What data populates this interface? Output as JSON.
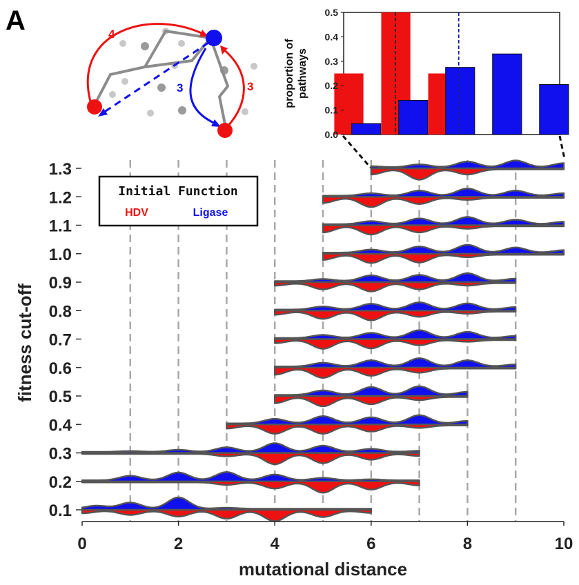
{
  "panel_label": "A",
  "colors": {
    "hdv": "#ee1111",
    "ligase": "#1010ee",
    "outline": "#555555",
    "gridline": "#a8a8a8",
    "node_gray": "#9a9a9a",
    "node_light": "#c8c8c8"
  },
  "diagram": {
    "red_top_label": "4",
    "red_right_label": "3",
    "blue_label": "3"
  },
  "legend": {
    "title": "Initial Function",
    "hdv_label": "HDV",
    "ligase_label": "Ligase"
  },
  "chart_data": [
    {
      "type": "bar",
      "title": "",
      "xlabel": "",
      "ylabel": "proportion of pathways",
      "ylabel_lines": [
        "proportion of",
        "pathways"
      ],
      "x_range": [
        5.65,
        10.25
      ],
      "ylim": [
        0,
        0.5
      ],
      "yticks": [
        "0.0",
        "0.1",
        "0.2",
        "0.3",
        "0.4",
        "0.5"
      ],
      "x_tick_labels_shown": false,
      "series": [
        {
          "name": "HDV",
          "x": [
            6,
            7,
            8
          ],
          "values": [
            0.25,
            0.5,
            0.25
          ]
        },
        {
          "name": "Ligase",
          "x": [
            6,
            7,
            8,
            9,
            10
          ],
          "values": [
            0.045,
            0.14,
            0.275,
            0.33,
            0.205
          ]
        }
      ],
      "reference_lines": [
        {
          "series": "HDV",
          "x": 6.75,
          "style": "dashed"
        },
        {
          "series": "Ligase",
          "x": 8.1,
          "style": "dashed"
        }
      ],
      "zoom_of_row": "1.3"
    },
    {
      "type": "violin",
      "title": "",
      "xlabel": "mutational distance",
      "ylabel": "fitness cut-off",
      "xlim": [
        0,
        10
      ],
      "xticks": [
        "0",
        "2",
        "4",
        "6",
        "8",
        "10"
      ],
      "grid": "dashed vertical at every integer",
      "legend_placement": "top-left",
      "series_names": [
        "HDV",
        "Ligase"
      ],
      "rows": [
        {
          "cutoff": "1.3",
          "range": [
            6,
            10
          ],
          "ligase_peaks": [
            [
              6,
              0.05
            ],
            [
              7,
              0.14
            ],
            [
              8,
              0.28
            ],
            [
              9,
              0.33
            ],
            [
              10,
              0.2
            ]
          ],
          "hdv_peaks": [
            [
              6,
              0.25
            ],
            [
              7,
              0.5
            ],
            [
              8,
              0.25
            ]
          ]
        },
        {
          "cutoff": "1.2",
          "range": [
            5,
            10
          ],
          "ligase_peaks": [
            [
              6,
              0.12
            ],
            [
              7,
              0.25
            ],
            [
              8,
              0.35
            ],
            [
              9,
              0.25
            ],
            [
              10,
              0.12
            ]
          ],
          "hdv_peaks": [
            [
              5,
              0.25
            ],
            [
              6,
              0.45
            ],
            [
              7,
              0.3
            ],
            [
              8,
              0.1
            ]
          ]
        },
        {
          "cutoff": "1.1",
          "range": [
            5,
            10
          ],
          "ligase_peaks": [
            [
              6,
              0.15
            ],
            [
              7,
              0.28
            ],
            [
              8,
              0.35
            ],
            [
              9,
              0.22
            ],
            [
              10,
              0.12
            ]
          ],
          "hdv_peaks": [
            [
              5,
              0.3
            ],
            [
              6,
              0.4
            ],
            [
              7,
              0.3
            ],
            [
              8,
              0.12
            ]
          ]
        },
        {
          "cutoff": "1.0",
          "range": [
            5,
            10
          ],
          "ligase_peaks": [
            [
              6,
              0.15
            ],
            [
              7,
              0.3
            ],
            [
              8,
              0.38
            ],
            [
              9,
              0.25
            ],
            [
              10,
              0.12
            ]
          ],
          "hdv_peaks": [
            [
              5,
              0.25
            ],
            [
              6,
              0.4
            ],
            [
              7,
              0.38
            ],
            [
              8,
              0.12
            ]
          ]
        },
        {
          "cutoff": "0.9",
          "range": [
            4,
            9
          ],
          "ligase_peaks": [
            [
              5,
              0.1
            ],
            [
              6,
              0.28
            ],
            [
              7,
              0.3
            ],
            [
              8,
              0.38
            ],
            [
              9,
              0.12
            ]
          ],
          "hdv_peaks": [
            [
              4,
              0.12
            ],
            [
              5,
              0.3
            ],
            [
              6,
              0.4
            ],
            [
              7,
              0.3
            ],
            [
              8,
              0.12
            ]
          ]
        },
        {
          "cutoff": "0.8",
          "range": [
            4,
            9
          ],
          "ligase_peaks": [
            [
              5,
              0.15
            ],
            [
              6,
              0.28
            ],
            [
              7,
              0.35
            ],
            [
              8,
              0.3
            ],
            [
              9,
              0.12
            ]
          ],
          "hdv_peaks": [
            [
              4,
              0.15
            ],
            [
              5,
              0.35
            ],
            [
              6,
              0.42
            ],
            [
              7,
              0.25
            ],
            [
              8,
              0.1
            ]
          ]
        },
        {
          "cutoff": "0.7",
          "range": [
            4,
            9
          ],
          "ligase_peaks": [
            [
              5,
              0.15
            ],
            [
              6,
              0.25
            ],
            [
              7,
              0.38
            ],
            [
              8,
              0.3
            ],
            [
              9,
              0.1
            ]
          ],
          "hdv_peaks": [
            [
              4,
              0.15
            ],
            [
              5,
              0.42
            ],
            [
              6,
              0.4
            ],
            [
              7,
              0.25
            ],
            [
              8,
              0.08
            ]
          ]
        },
        {
          "cutoff": "0.6",
          "range": [
            4,
            9
          ],
          "ligase_peaks": [
            [
              5,
              0.18
            ],
            [
              6,
              0.3
            ],
            [
              7,
              0.4
            ],
            [
              8,
              0.3
            ],
            [
              9,
              0.1
            ]
          ],
          "hdv_peaks": [
            [
              4,
              0.3
            ],
            [
              5,
              0.45
            ],
            [
              6,
              0.35
            ],
            [
              7,
              0.2
            ]
          ]
        },
        {
          "cutoff": "0.5",
          "range": [
            4,
            8
          ],
          "ligase_peaks": [
            [
              5,
              0.22
            ],
            [
              6,
              0.38
            ],
            [
              7,
              0.42
            ],
            [
              8,
              0.15
            ]
          ],
          "hdv_peaks": [
            [
              4,
              0.3
            ],
            [
              5,
              0.45
            ],
            [
              6,
              0.35
            ],
            [
              7,
              0.15
            ]
          ]
        },
        {
          "cutoff": "0.4",
          "range": [
            3,
            8
          ],
          "ligase_peaks": [
            [
              4,
              0.22
            ],
            [
              5,
              0.35
            ],
            [
              6,
              0.3
            ],
            [
              7,
              0.4
            ],
            [
              8,
              0.12
            ]
          ],
          "hdv_peaks": [
            [
              3,
              0.15
            ],
            [
              4,
              0.4
            ],
            [
              5,
              0.4
            ],
            [
              6,
              0.3
            ],
            [
              7,
              0.12
            ]
          ]
        },
        {
          "cutoff": "0.3",
          "range": [
            0,
            7
          ],
          "ligase_peaks": [
            [
              1,
              0.04
            ],
            [
              2,
              0.1
            ],
            [
              3,
              0.22
            ],
            [
              4,
              0.42
            ],
            [
              5,
              0.3
            ],
            [
              6,
              0.15
            ],
            [
              7,
              0.05
            ]
          ],
          "hdv_peaks": [
            [
              3,
              0.12
            ],
            [
              4,
              0.5
            ],
            [
              5,
              0.45
            ],
            [
              6,
              0.28
            ],
            [
              7,
              0.1
            ]
          ]
        },
        {
          "cutoff": "0.2",
          "range": [
            0,
            7
          ],
          "ligase_peaks": [
            [
              1,
              0.22
            ],
            [
              2,
              0.38
            ],
            [
              3,
              0.4
            ],
            [
              4,
              0.28
            ],
            [
              5,
              0.12
            ],
            [
              6,
              0.05
            ]
          ],
          "hdv_peaks": [
            [
              3,
              0.12
            ],
            [
              4,
              0.3
            ],
            [
              5,
              0.5
            ],
            [
              6,
              0.35
            ],
            [
              7,
              0.15
            ]
          ]
        },
        {
          "cutoff": "0.1",
          "range": [
            0,
            6
          ],
          "ligase_peaks": [
            [
              0.3,
              0.15
            ],
            [
              1,
              0.3
            ],
            [
              2,
              0.55
            ],
            [
              3,
              0.05
            ]
          ],
          "hdv_peaks": [
            [
              0,
              0.12
            ],
            [
              1,
              0.2
            ],
            [
              2,
              0.28
            ],
            [
              3,
              0.38
            ],
            [
              4,
              0.5
            ],
            [
              5,
              0.3
            ],
            [
              6,
              0.1
            ]
          ]
        }
      ]
    }
  ]
}
